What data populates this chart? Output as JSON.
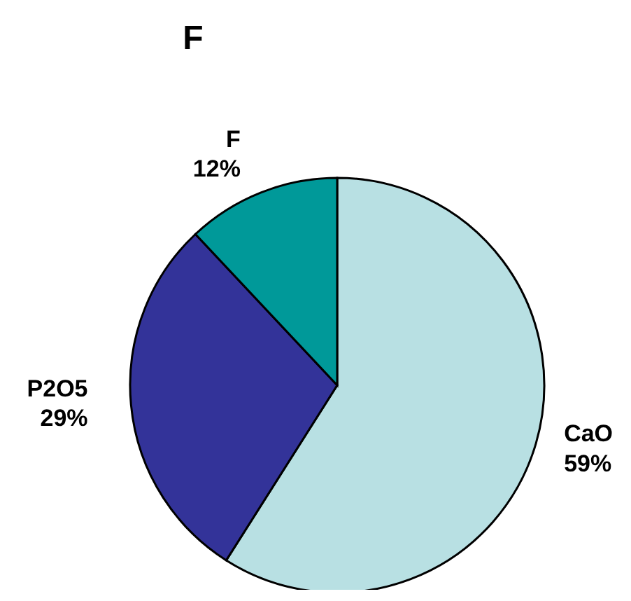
{
  "chart_data": {
    "type": "pie",
    "title": "F",
    "categories": [
      "CaO",
      "P2O5",
      "F"
    ],
    "values": [
      59,
      29,
      12
    ],
    "value_labels": [
      "59%",
      "29%",
      "12%"
    ],
    "colors": [
      "#b8e0e3",
      "#333399",
      "#009999"
    ],
    "legend": false
  }
}
